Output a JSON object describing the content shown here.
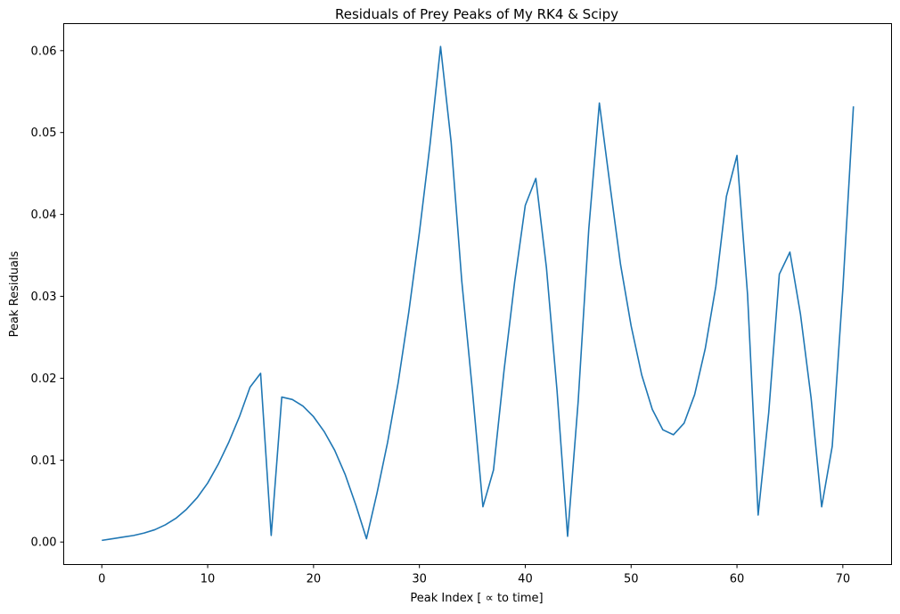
{
  "chart_data": {
    "type": "line",
    "title": "Residuals of Prey Peaks of My RK4 & Scipy",
    "xlabel": "Peak Index [ ∝  to time]",
    "ylabel": "Peak Residuals",
    "xlim": [
      -3.6,
      74.6
    ],
    "ylim": [
      -0.00275,
      0.0633
    ],
    "x_ticks": [
      0,
      10,
      20,
      30,
      40,
      50,
      60,
      70
    ],
    "y_ticks": [
      0.0,
      0.01,
      0.02,
      0.03,
      0.04,
      0.05,
      0.06
    ],
    "x_tick_labels": [
      "0",
      "10",
      "20",
      "30",
      "40",
      "50",
      "60",
      "70"
    ],
    "y_tick_labels": [
      "0.00",
      "0.01",
      "0.02",
      "0.03",
      "0.04",
      "0.05",
      "0.06"
    ],
    "grid": false,
    "line_color": "#1f77b4",
    "series": [
      {
        "x": [
          0,
          1,
          2,
          3,
          4,
          5,
          6,
          7,
          8,
          9,
          10,
          11,
          12,
          13,
          14,
          15,
          16,
          17,
          18,
          19,
          20,
          21,
          22,
          23,
          24,
          25,
          26,
          27,
          28,
          29,
          30,
          31,
          32,
          33,
          34,
          35,
          36,
          37,
          38,
          39,
          40,
          41,
          42,
          43,
          44,
          45,
          46,
          47,
          48,
          49,
          50,
          51,
          52,
          53,
          54,
          55,
          56,
          57,
          58,
          59,
          60,
          61,
          62,
          63,
          64,
          65,
          66,
          67,
          68,
          69,
          70,
          71
        ],
        "y": [
          0.0002,
          0.0004,
          0.0006,
          0.0008,
          0.0011,
          0.0015,
          0.0021,
          0.0029,
          0.004,
          0.0054,
          0.0072,
          0.0095,
          0.0122,
          0.0153,
          0.0189,
          0.0206,
          0.0008,
          0.0177,
          0.0174,
          0.0166,
          0.0153,
          0.0135,
          0.0112,
          0.0082,
          0.0045,
          0.0004,
          0.006,
          0.0122,
          0.0195,
          0.0281,
          0.0378,
          0.0485,
          0.0605,
          0.0488,
          0.0319,
          0.0186,
          0.0043,
          0.0088,
          0.021,
          0.0318,
          0.0411,
          0.0444,
          0.0335,
          0.0185,
          0.0007,
          0.0172,
          0.0382,
          0.0536,
          0.0436,
          0.0339,
          0.0264,
          0.0204,
          0.0162,
          0.0137,
          0.0131,
          0.0145,
          0.018,
          0.0236,
          0.0312,
          0.0422,
          0.0472,
          0.0302,
          0.0033,
          0.0158,
          0.0327,
          0.0354,
          0.0278,
          0.0176,
          0.0043,
          0.0117,
          0.0309,
          0.0532
        ]
      }
    ]
  }
}
